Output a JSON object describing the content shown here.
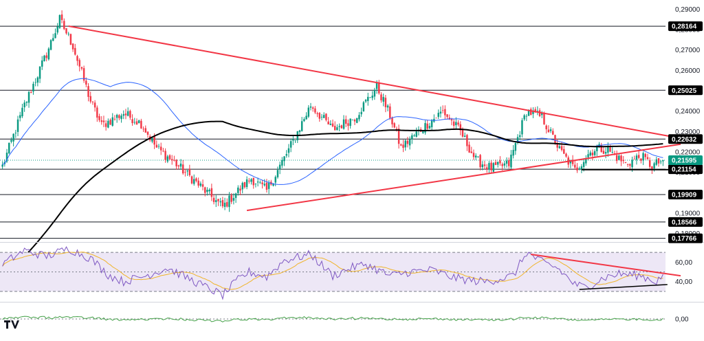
{
  "chart_data": {
    "type": "candlestick",
    "colors": {
      "up": "#089981",
      "down": "#f23645",
      "ma_fast": "#2962ff",
      "ma_slow": "#000000",
      "trendline": "#f23645",
      "support": "#000000",
      "rsi": "#7e57c2",
      "rsi_ma": "#f0b429",
      "rsi_band": "#ede7f6",
      "osc": "#43a047",
      "price_tag": "#000000",
      "last_tag": "#089981"
    },
    "price_axis": {
      "min": 0.175,
      "max": 0.293,
      "ticks": [
        "0,29000",
        "0,28000",
        "0,27000",
        "0,26000",
        "0,24000",
        "0,23000",
        "0,22000",
        "0,21000",
        "0,20000",
        "0,19000",
        "0,18000"
      ]
    },
    "levels": [
      {
        "value": 0.28164,
        "label": "0,28164"
      },
      {
        "value": 0.25025,
        "label": "0,25025"
      },
      {
        "value": 0.22632,
        "label": "0,22632"
      },
      {
        "value": 0.21154,
        "label": "0,21154"
      },
      {
        "value": 0.19909,
        "label": "0,19909"
      },
      {
        "value": 0.18566,
        "label": "0,18566"
      },
      {
        "value": 0.17766,
        "label": "0,17766"
      }
    ],
    "last_price": {
      "value": 0.21595,
      "label": "0,21595"
    },
    "anchors": {
      "bar_index": [
        0,
        10,
        20,
        26,
        32,
        40,
        45,
        55,
        63,
        70,
        79,
        90,
        100,
        107,
        113,
        120,
        130,
        140,
        150,
        160,
        170,
        176,
        181,
        190,
        200,
        208,
        215,
        222,
        230,
        238,
        245,
        253,
        260,
        266,
        270,
        275,
        283,
        290,
        295,
        300
      ],
      "close": [
        0.213,
        0.243,
        0.268,
        0.285,
        0.272,
        0.245,
        0.233,
        0.239,
        0.234,
        0.222,
        0.214,
        0.203,
        0.193,
        0.201,
        0.207,
        0.201,
        0.221,
        0.243,
        0.231,
        0.237,
        0.252,
        0.238,
        0.222,
        0.231,
        0.24,
        0.23,
        0.216,
        0.212,
        0.214,
        0.24,
        0.237,
        0.221,
        0.211,
        0.219,
        0.222,
        0.221,
        0.214,
        0.218,
        0.213,
        0.216
      ]
    },
    "bar_count": 301,
    "trendlines": [
      {
        "from": {
          "bar": 30,
          "value": 0.2817
        },
        "to": {
          "bar": 308,
          "value": 0.2267
        }
      },
      {
        "from": {
          "bar": 111,
          "value": 0.1913
        },
        "to": {
          "bar": 308,
          "value": 0.2238
        }
      }
    ],
    "support_line": {
      "from": {
        "bar": 263,
        "value": 0.2113
      },
      "to": {
        "bar": 303,
        "value": 0.2113
      }
    },
    "rsi": {
      "min": 20,
      "max": 80,
      "ticks": [
        "60,00",
        "40,00"
      ],
      "upper": 70,
      "mid": 50,
      "lower": 30,
      "anchors_idx": [
        0,
        10,
        20,
        30,
        40,
        48,
        55,
        65,
        75,
        90,
        100,
        107,
        112,
        120,
        128,
        140,
        150,
        158,
        165,
        176,
        185,
        195,
        205,
        213,
        220,
        232,
        238,
        245,
        252,
        260,
        265,
        273,
        280,
        290,
        297,
        300
      ],
      "anchors_val": [
        58,
        72,
        66,
        74,
        64,
        47,
        40,
        46,
        54,
        37,
        26,
        42,
        50,
        45,
        62,
        68,
        46,
        54,
        58,
        46,
        50,
        52,
        44,
        41,
        40,
        46,
        70,
        60,
        54,
        37,
        34,
        44,
        48,
        46,
        40,
        47
      ],
      "trendlines": [
        {
          "from": {
            "bar": 240,
            "value": 68
          },
          "to": {
            "bar": 308,
            "value": 46
          }
        },
        {
          "from": {
            "bar": 262,
            "value": 32
          },
          "to": {
            "bar": 302,
            "value": 37
          }
        }
      ]
    },
    "oscillator": {
      "ticks": [
        "0,00"
      ],
      "zero_label": "0,00"
    }
  },
  "logo": {
    "text": "TV"
  }
}
